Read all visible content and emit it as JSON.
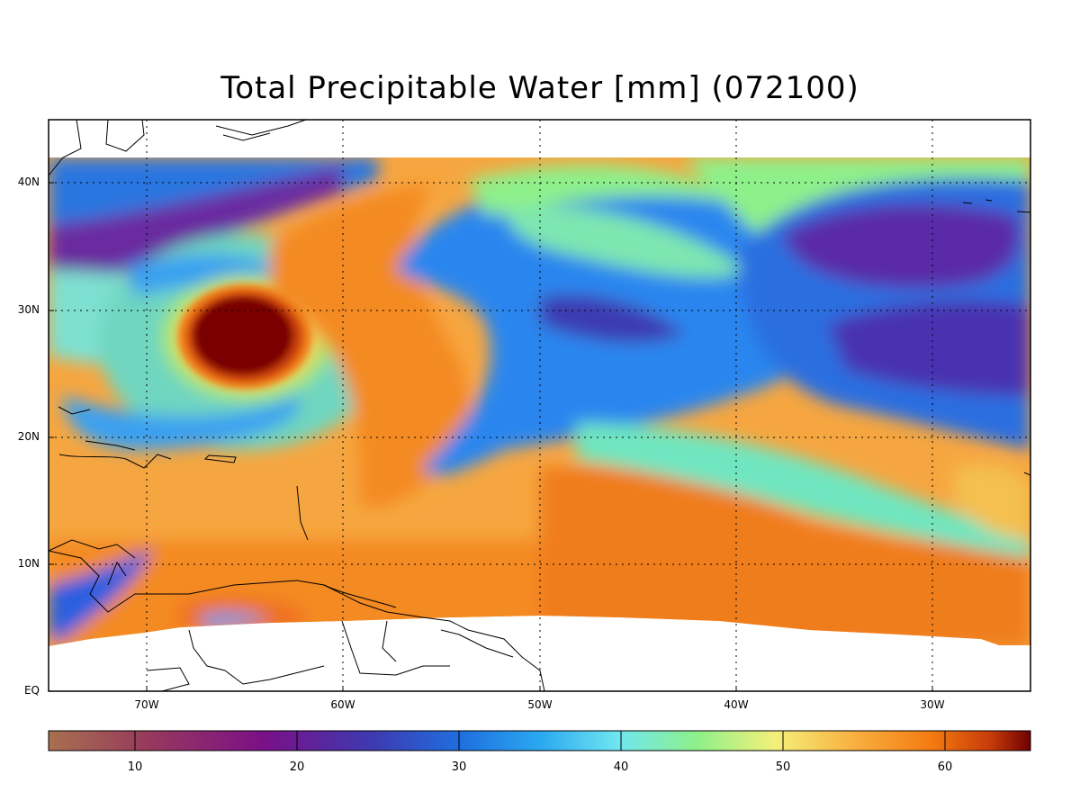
{
  "title": "Total Precipitable Water [mm]  (072100)",
  "lat_labels": [
    "40N",
    "30N",
    "20N",
    "10N",
    "EQ"
  ],
  "lon_labels": [
    "70W",
    "60W",
    "50W",
    "40W",
    "30W"
  ],
  "colorbar": {
    "ticks": [
      "10",
      "20",
      "30",
      "40",
      "50",
      "60"
    ],
    "range": [
      5,
      65
    ],
    "colors": [
      "#a8704f",
      "#8c2a6a",
      "#6e0f8c",
      "#3d3ab0",
      "#1f6fe0",
      "#1e96f0",
      "#6fe6f0",
      "#8ef08a",
      "#f4f07a",
      "#f8b040",
      "#f47a10",
      "#c63a0a",
      "#6e0000"
    ]
  },
  "map": {
    "lon_range": [
      "75W",
      "25W"
    ],
    "lat_range": [
      "EQ",
      "45N"
    ],
    "feature": "hurricane core near 28N 65W"
  }
}
